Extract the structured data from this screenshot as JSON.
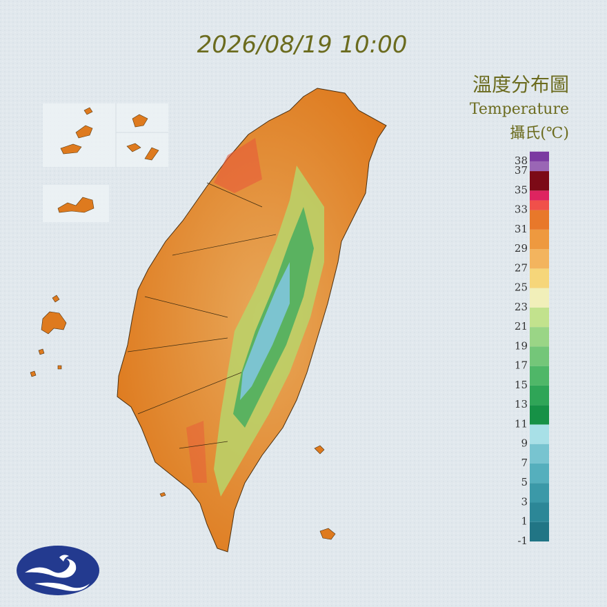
{
  "title": "2026/08/19 10:00",
  "legend": {
    "title": "溫度分布圖",
    "subtitle": "Temperature",
    "unit": "攝氏(℃)",
    "ticks": [
      38,
      37,
      35,
      33,
      31,
      29,
      27,
      25,
      23,
      21,
      19,
      17,
      15,
      13,
      11,
      9,
      7,
      5,
      3,
      1,
      -1
    ],
    "bands": [
      {
        "from": -1,
        "to": 1,
        "color": "#217585"
      },
      {
        "from": 1,
        "to": 3,
        "color": "#2c8797"
      },
      {
        "from": 3,
        "to": 5,
        "color": "#3b99a8"
      },
      {
        "from": 5,
        "to": 7,
        "color": "#55afbd"
      },
      {
        "from": 7,
        "to": 9,
        "color": "#78c4d0"
      },
      {
        "from": 9,
        "to": 11,
        "color": "#a8e0e7"
      },
      {
        "from": 11,
        "to": 13,
        "color": "#169146"
      },
      {
        "from": 13,
        "to": 15,
        "color": "#2fa557"
      },
      {
        "from": 15,
        "to": 17,
        "color": "#4fb768"
      },
      {
        "from": 17,
        "to": 19,
        "color": "#74c679"
      },
      {
        "from": 19,
        "to": 21,
        "color": "#9ad586"
      },
      {
        "from": 21,
        "to": 23,
        "color": "#c2e28d"
      },
      {
        "from": 23,
        "to": 25,
        "color": "#f1efb9"
      },
      {
        "from": 25,
        "to": 27,
        "color": "#f6d67a"
      },
      {
        "from": 27,
        "to": 29,
        "color": "#f3b45e"
      },
      {
        "from": 29,
        "to": 31,
        "color": "#ee993f"
      },
      {
        "from": 31,
        "to": 33,
        "color": "#e8782a"
      },
      {
        "from": 33,
        "to": 34,
        "color": "#f0504a"
      },
      {
        "from": 34,
        "to": 35,
        "color": "#de2460"
      },
      {
        "from": 35,
        "to": 37,
        "color": "#7c0a16"
      },
      {
        "from": 37,
        "to": 38,
        "color": "#9a66b5"
      },
      {
        "from": 38,
        "to": 39,
        "color": "#7b3aa1"
      }
    ]
  }
}
